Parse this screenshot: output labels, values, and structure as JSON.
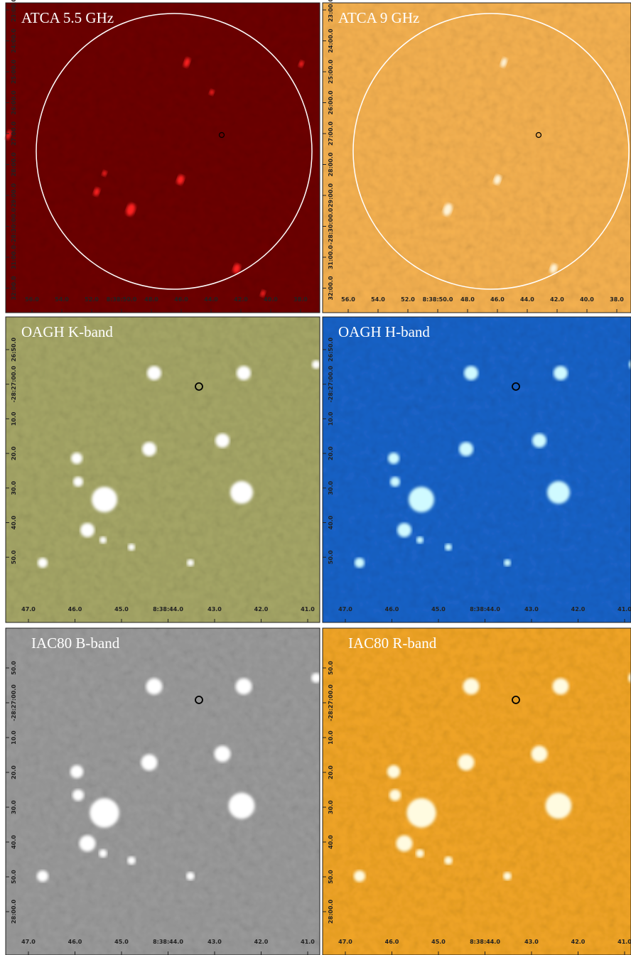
{
  "panels": [
    {
      "title": "ATCA 5.5 GHz",
      "x_ticks": [
        "56.0",
        "54.0",
        "52.0",
        "8:38:50.0",
        "48.0",
        "46.0",
        "44.0",
        "42.0",
        "40.0",
        "38.0"
      ],
      "y_ticks": [
        "23:00.0",
        "24:00.0",
        "25:00.0",
        "26:00.0",
        "27:00.0",
        "28:00.0",
        "29:00.0",
        "-28:30:00.0",
        "31:00.0",
        "32:00.0"
      ]
    },
    {
      "title": "ATCA 9 GHz",
      "x_ticks": [
        "56.0",
        "54.0",
        "52.0",
        "8:38:50.0",
        "48.0",
        "46.0",
        "44.0",
        "42.0",
        "40.0",
        "38.0"
      ],
      "y_ticks": [
        "23:00.0",
        "24:00.0",
        "25:00.0",
        "26:00.0",
        "27:00.0",
        "28:00.0",
        "29:00.0",
        "-28:30:00.0",
        "31:00.0",
        "32:00.0"
      ]
    },
    {
      "title": "OAGH K-band",
      "x_ticks": [
        "47.0",
        "46.0",
        "45.0",
        "8:38:44.0",
        "43.0",
        "42.0",
        "41.0"
      ],
      "y_ticks": [
        "26:50.0",
        "-28:27:00.0",
        "10.0",
        "20.0",
        "30.0",
        "40.0",
        "50.0"
      ]
    },
    {
      "title": "OAGH H-band",
      "x_ticks": [
        "47.0",
        "46.0",
        "45.0",
        "8:38:44.0",
        "43.0",
        "42.0",
        "41.0"
      ],
      "y_ticks": [
        "26:50.0",
        "-28:27:00.0",
        "10.0",
        "20.0",
        "30.0",
        "40.0",
        "50.0"
      ]
    },
    {
      "title": "IAC80 B-band",
      "x_ticks": [
        "47.0",
        "46.0",
        "45.0",
        "8:38:44.0",
        "43.0",
        "42.0",
        "41.0"
      ],
      "y_ticks": [
        "50.0",
        "-28:27:00.0",
        "10.0",
        "20.0",
        "30.0",
        "40.0",
        "50.0",
        "28:00.0"
      ]
    },
    {
      "title": "IAC80 R-band",
      "x_ticks": [
        "47.0",
        "46.0",
        "45.0",
        "8:38:44.0",
        "43.0",
        "42.0",
        "41.0"
      ],
      "y_ticks": [
        "50.0",
        "-28:27:00.0",
        "10.0",
        "20.0",
        "30.0",
        "40.0",
        "50.0",
        "28:00.0"
      ]
    }
  ]
}
